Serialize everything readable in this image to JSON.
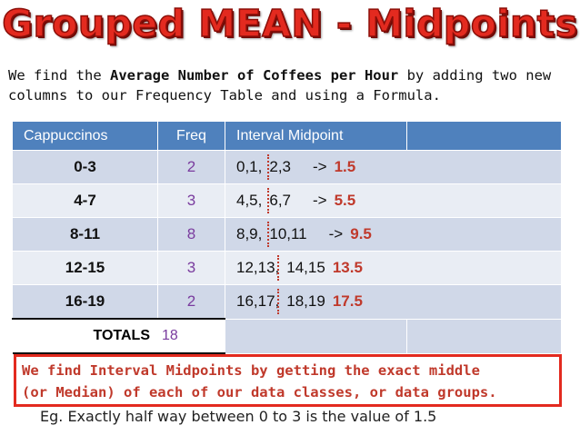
{
  "title": "Grouped MEAN - Midpoints",
  "intro": {
    "text1": "We find the ",
    "bold": "Average Number of Coffees per Hour",
    "text2": " by adding two new columns to our Frequency Table and using a Formula."
  },
  "table": {
    "headers": [
      "Cappuccinos",
      "Freq",
      "Interval Midpoint",
      ""
    ],
    "rows": [
      {
        "interval": "0-3",
        "freq": "2",
        "left": "0,1,",
        "right": "2,3",
        "arrow": "->",
        "midpoint": "1.5"
      },
      {
        "interval": "4-7",
        "freq": "3",
        "left": "4,5,",
        "right": "6,7",
        "arrow": "->",
        "midpoint": "5.5"
      },
      {
        "interval": "8-11",
        "freq": "8",
        "left": "8,9,",
        "right": "10,11",
        "arrow": "->",
        "midpoint": "9.5"
      },
      {
        "interval": "12-15",
        "freq": "3",
        "left": "12,13,",
        "right": "14,15",
        "arrow": "",
        "midpoint": "13.5"
      },
      {
        "interval": "16-19",
        "freq": "2",
        "left": "16,17,",
        "right": "18,19",
        "arrow": "",
        "midpoint": "17.5"
      }
    ],
    "totals_label": "TOTALS",
    "totals_value": "18"
  },
  "callout": {
    "line1": "We find Interval Midpoints by getting the exact middle",
    "line2": "(or Median) of each of our data classes, or data groups."
  },
  "example": "Eg. Exactly half way between 0 to 3 is the value of 1.5"
}
